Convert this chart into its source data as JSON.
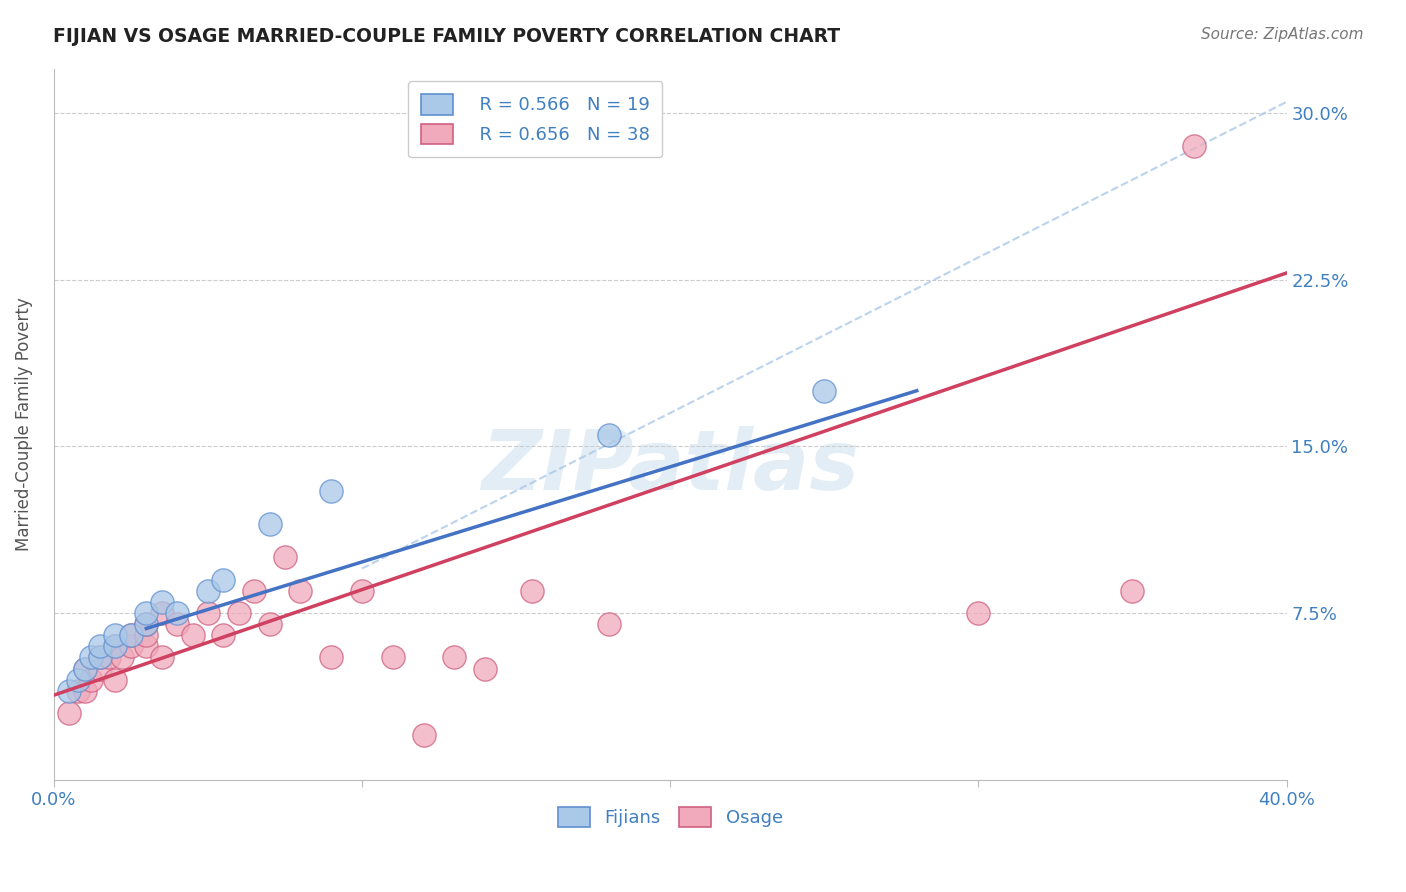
{
  "title": "FIJIAN VS OSAGE MARRIED-COUPLE FAMILY POVERTY CORRELATION CHART",
  "source": "Source: ZipAtlas.com",
  "ylabel": "Married-Couple Family Poverty",
  "xlim": [
    0.0,
    0.4
  ],
  "ylim": [
    0.0,
    0.32
  ],
  "ytick_labels": [
    "7.5%",
    "15.0%",
    "22.5%",
    "30.0%"
  ],
  "ytick_values": [
    0.075,
    0.15,
    0.225,
    0.3
  ],
  "fijian_fill": "#aac8e8",
  "fijian_edge": "#6090d0",
  "osage_fill": "#f0aabb",
  "osage_edge": "#d06080",
  "fijian_line_color": "#4472c4",
  "osage_line_color": "#d04060",
  "dash_line_color": "#aac8e8",
  "legend_r_fijian": "R = 0.566",
  "legend_n_fijian": "N = 19",
  "legend_r_osage": "R = 0.656",
  "legend_n_osage": "N = 38",
  "watermark_text": "ZIPatlas",
  "background_color": "#ffffff",
  "grid_color": "#cccccc",
  "title_color": "#222222",
  "axis_label_color": "#555555",
  "tick_label_color": "#4080c0",
  "fijian_points": [
    [
      0.005,
      0.04
    ],
    [
      0.008,
      0.045
    ],
    [
      0.01,
      0.05
    ],
    [
      0.012,
      0.055
    ],
    [
      0.015,
      0.055
    ],
    [
      0.015,
      0.06
    ],
    [
      0.02,
      0.06
    ],
    [
      0.02,
      0.065
    ],
    [
      0.025,
      0.065
    ],
    [
      0.03,
      0.07
    ],
    [
      0.03,
      0.075
    ],
    [
      0.035,
      0.08
    ],
    [
      0.04,
      0.075
    ],
    [
      0.05,
      0.085
    ],
    [
      0.055,
      0.09
    ],
    [
      0.07,
      0.115
    ],
    [
      0.09,
      0.13
    ],
    [
      0.18,
      0.155
    ],
    [
      0.25,
      0.175
    ]
  ],
  "osage_points": [
    [
      0.005,
      0.03
    ],
    [
      0.008,
      0.04
    ],
    [
      0.01,
      0.04
    ],
    [
      0.01,
      0.05
    ],
    [
      0.012,
      0.045
    ],
    [
      0.015,
      0.05
    ],
    [
      0.015,
      0.055
    ],
    [
      0.018,
      0.055
    ],
    [
      0.02,
      0.045
    ],
    [
      0.02,
      0.06
    ],
    [
      0.022,
      0.055
    ],
    [
      0.025,
      0.06
    ],
    [
      0.025,
      0.065
    ],
    [
      0.03,
      0.06
    ],
    [
      0.03,
      0.065
    ],
    [
      0.03,
      0.07
    ],
    [
      0.035,
      0.055
    ],
    [
      0.035,
      0.075
    ],
    [
      0.04,
      0.07
    ],
    [
      0.045,
      0.065
    ],
    [
      0.05,
      0.075
    ],
    [
      0.055,
      0.065
    ],
    [
      0.06,
      0.075
    ],
    [
      0.065,
      0.085
    ],
    [
      0.07,
      0.07
    ],
    [
      0.075,
      0.1
    ],
    [
      0.08,
      0.085
    ],
    [
      0.09,
      0.055
    ],
    [
      0.1,
      0.085
    ],
    [
      0.11,
      0.055
    ],
    [
      0.12,
      0.02
    ],
    [
      0.13,
      0.055
    ],
    [
      0.14,
      0.05
    ],
    [
      0.155,
      0.085
    ],
    [
      0.18,
      0.07
    ],
    [
      0.3,
      0.075
    ],
    [
      0.35,
      0.085
    ],
    [
      0.37,
      0.285
    ]
  ],
  "fijian_line_x": [
    0.03,
    0.28
  ],
  "fijian_line_y": [
    0.068,
    0.175
  ],
  "osage_line_x": [
    0.0,
    0.4
  ],
  "osage_line_y": [
    0.038,
    0.228
  ],
  "dash_line_x": [
    0.1,
    0.4
  ],
  "dash_line_y": [
    0.095,
    0.305
  ]
}
